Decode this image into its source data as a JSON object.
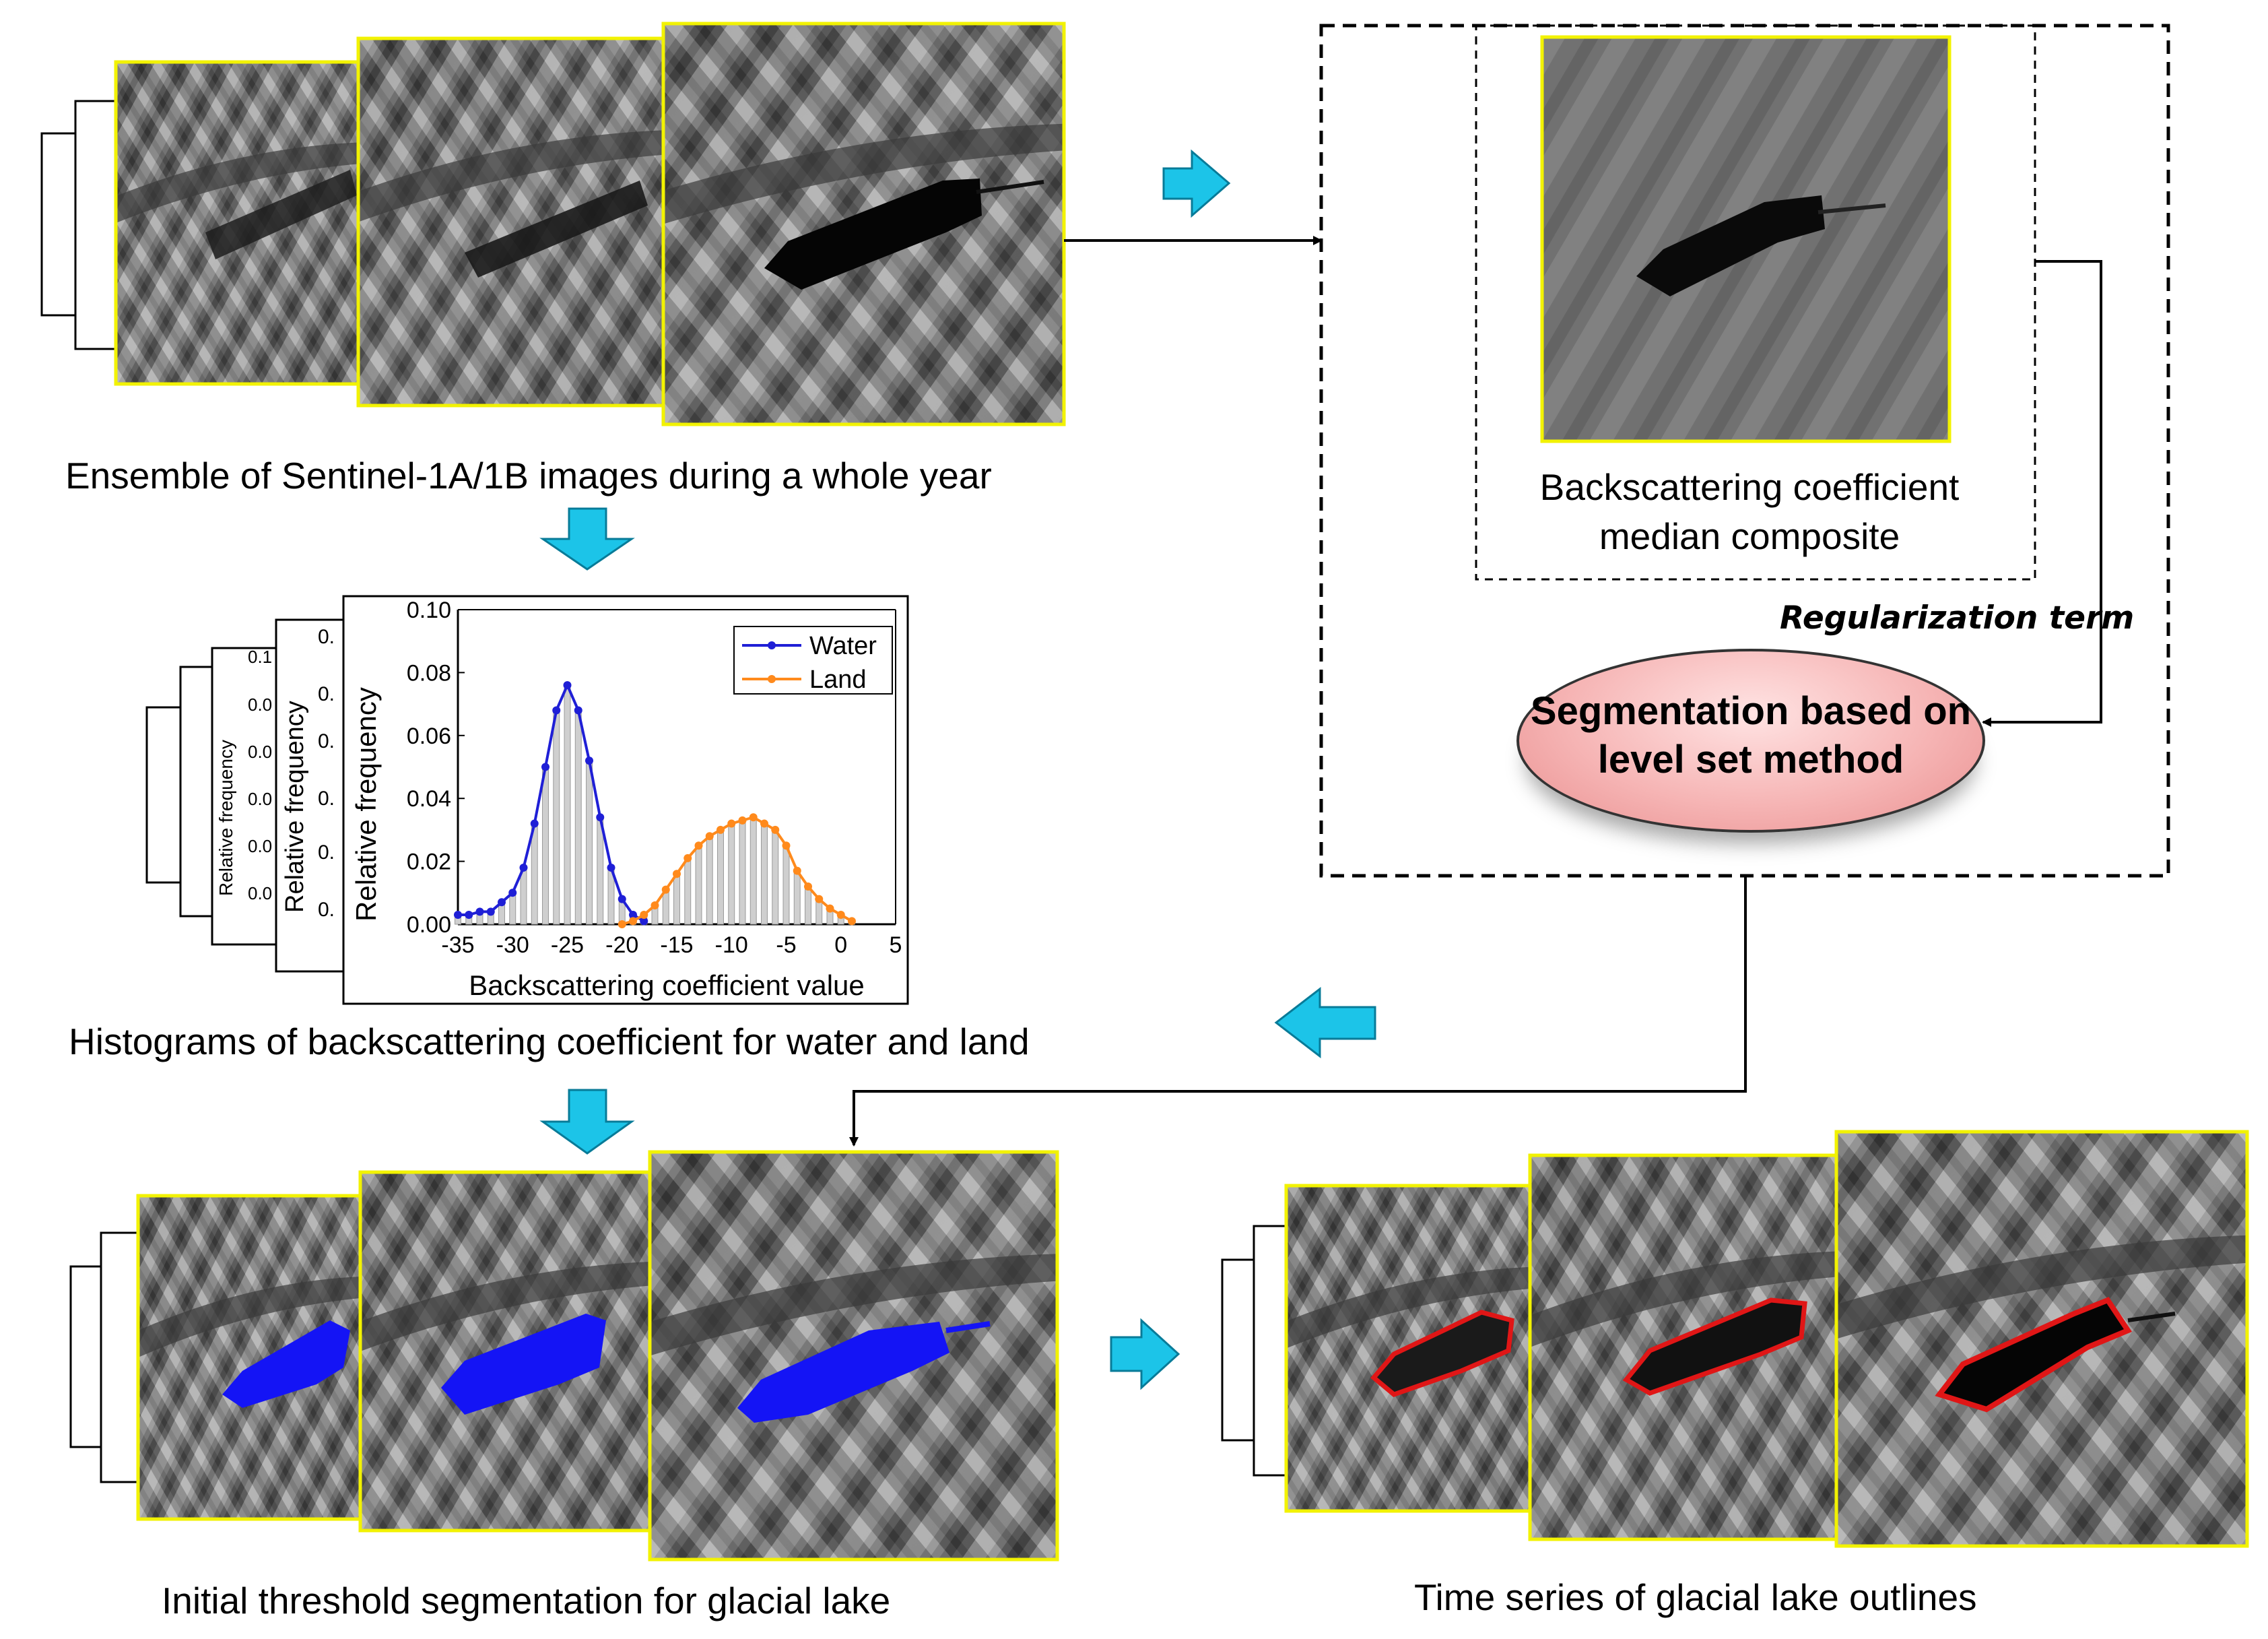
{
  "captions": {
    "ensemble": "Ensemble of Sentinel-1A/1B images during a whole year",
    "median": "Backscattering coefficient median composite",
    "histograms": "Histograms of backscattering coefficient for water and land",
    "initial": "Initial threshold segmentation for glacial lake",
    "timeseries": "Time series of glacial lake outlines",
    "regularization": "Regularization term",
    "segmentation": "Segmentation based on level set method"
  },
  "colors": {
    "arrow": "#1cc4e8",
    "water": "#1f1fd6",
    "land": "#ff8a1c",
    "outline": "#e01616",
    "lake_fill": "#1414f5",
    "image_border": "#f2f200"
  },
  "chart_data": {
    "type": "line",
    "title": "",
    "xlabel": "Backscattering coefficient value",
    "ylabel": "Relative frequency",
    "xlim": [
      -35,
      5
    ],
    "ylim": [
      0,
      0.1
    ],
    "x_ticks": [
      "-35",
      "-30",
      "-25",
      "-20",
      "-15",
      "-10",
      "-5",
      "0",
      "5"
    ],
    "y_ticks": [
      "0.00",
      "0.02",
      "0.04",
      "0.06",
      "0.08",
      "0.10"
    ],
    "legend_position": "top-right",
    "series": [
      {
        "name": "Water",
        "x": [
          -35,
          -34,
          -33,
          -32,
          -31,
          -30,
          -29,
          -28,
          -27,
          -26,
          -25,
          -24,
          -23,
          -22,
          -21,
          -20,
          -19,
          -18
        ],
        "values": [
          0.003,
          0.003,
          0.004,
          0.004,
          0.007,
          0.01,
          0.018,
          0.032,
          0.05,
          0.068,
          0.076,
          0.068,
          0.052,
          0.034,
          0.018,
          0.008,
          0.003,
          0.001
        ]
      },
      {
        "name": "Land",
        "x": [
          -20,
          -19,
          -18,
          -17,
          -16,
          -15,
          -14,
          -13,
          -12,
          -11,
          -10,
          -9,
          -8,
          -7,
          -6,
          -5,
          -4,
          -3,
          -2,
          -1,
          0,
          1
        ],
        "values": [
          0.0,
          0.001,
          0.003,
          0.006,
          0.011,
          0.016,
          0.021,
          0.025,
          0.028,
          0.03,
          0.032,
          0.033,
          0.034,
          0.032,
          0.03,
          0.025,
          0.017,
          0.012,
          0.008,
          0.005,
          0.003,
          0.001
        ]
      }
    ],
    "back_panel_ticks": [
      "0.1",
      "0.0",
      "0.0",
      "0.0",
      "0.0",
      "0.0"
    ]
  }
}
